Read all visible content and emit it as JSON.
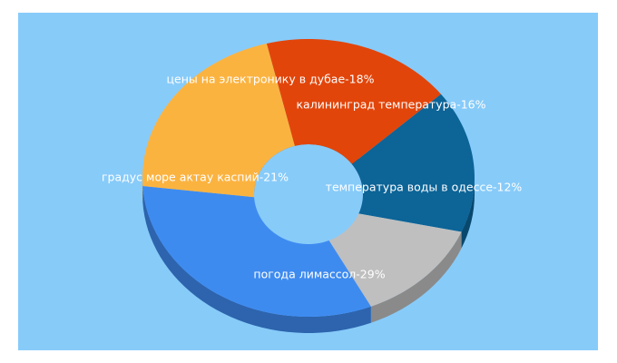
{
  "colors": {
    "background_panel": "#87CBF9"
  },
  "chart_data": {
    "type": "pie",
    "style": "donut-3d",
    "title": "",
    "slices": [
      {
        "label": "цены на электронику в дубае-18%",
        "value": 18,
        "color": "#E2450A"
      },
      {
        "label": "калининград температура-16%",
        "value": 16,
        "color": "#0C6497"
      },
      {
        "label": "температура воды в одессе-12%",
        "value": 12,
        "color": "#BFBFBF"
      },
      {
        "label": "погода лимассол-29%",
        "value": 29,
        "color": "#3E8BF0"
      },
      {
        "label": "градус море актау каспий-21%",
        "value": 21,
        "color": "#FBB340"
      }
    ]
  }
}
